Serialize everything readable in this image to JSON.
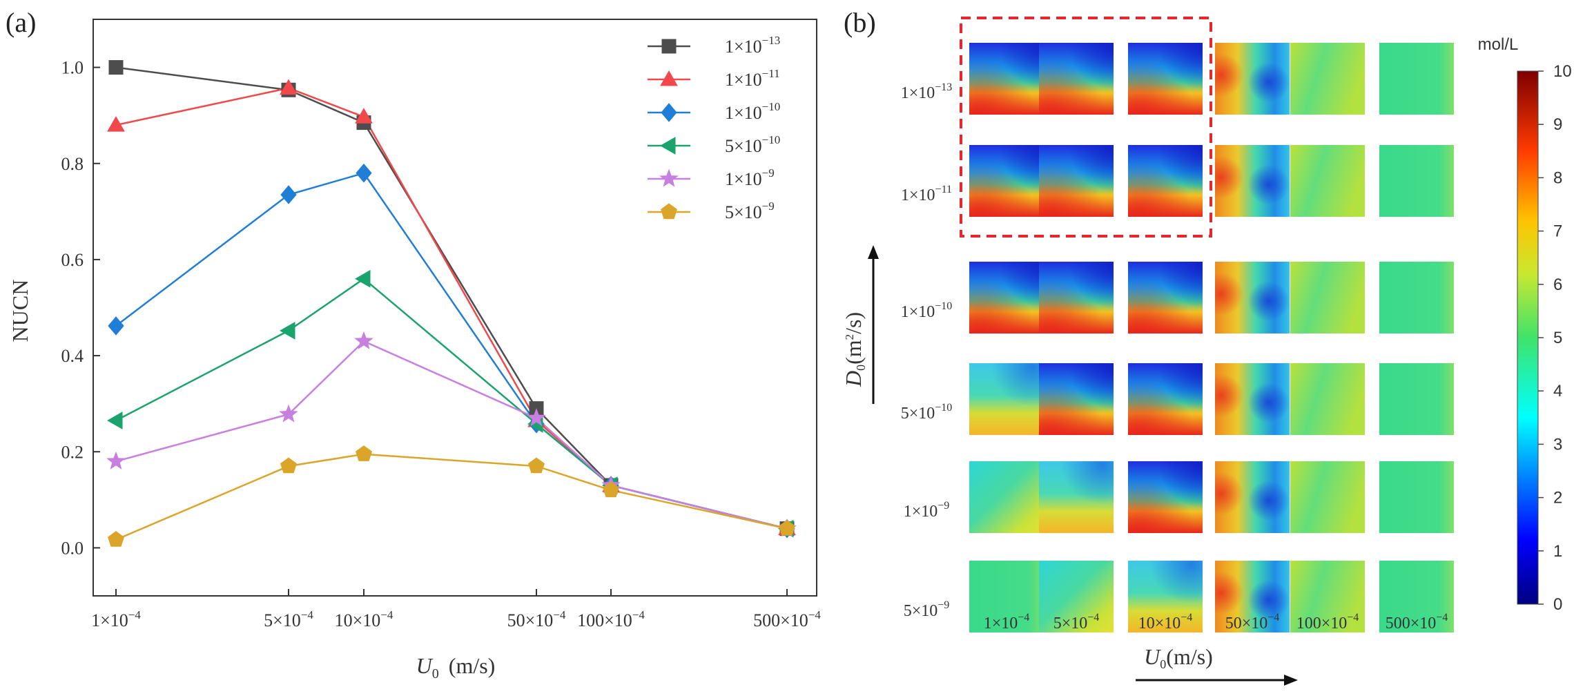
{
  "chart_data": [
    {
      "type": "line",
      "panel_label": "(a)",
      "xlabel": "U",
      "xlabel_sub": "0",
      "xlabel_unit": "(m/s)",
      "ylabel": "NUCN",
      "ylim": [
        -0.1,
        1.1
      ],
      "yticks": [
        0.0,
        0.2,
        0.4,
        0.6,
        0.8,
        1.0
      ],
      "ytick_labels": [
        "0.0",
        "0.2",
        "0.4",
        "0.6",
        "0.8",
        "1.0"
      ],
      "x": [
        1,
        5,
        10,
        50,
        100,
        500
      ],
      "xtick_labels": [
        "1×10⁻⁴",
        "5×10⁻⁴",
        "10×10⁻⁴",
        "50×10⁻⁴",
        "100×10⁻⁴",
        "500×10⁻⁴"
      ],
      "xtick_parts": [
        {
          "base": "1×10",
          "exp": "-4"
        },
        {
          "base": "5×10",
          "exp": "-4"
        },
        {
          "base": "10×10",
          "exp": "-4"
        },
        {
          "base": "50×10",
          "exp": "-4"
        },
        {
          "base": "100×10",
          "exp": "-4"
        },
        {
          "base": "500×10",
          "exp": "-4"
        }
      ],
      "series": [
        {
          "name": "1×10⁻¹³",
          "base": "1×10",
          "exp": "-13",
          "color": "#4d4d4d",
          "marker": "square",
          "values": [
            1.0,
            0.953,
            0.885,
            0.29,
            0.13,
            0.04
          ]
        },
        {
          "name": "1×10⁻¹¹",
          "base": "1×10",
          "exp": "-11",
          "color": "#f0484b",
          "marker": "triangle-up",
          "values": [
            0.88,
            0.957,
            0.897,
            0.265,
            0.13,
            0.04
          ]
        },
        {
          "name": "1×10⁻¹⁰",
          "base": "1×10",
          "exp": "-10",
          "color": "#1f7fd6",
          "marker": "diamond",
          "values": [
            0.462,
            0.735,
            0.78,
            0.258,
            0.13,
            0.04
          ]
        },
        {
          "name": "5×10⁻¹⁰",
          "base": "5×10",
          "exp": "-10",
          "color": "#1aa36d",
          "marker": "triangle-left",
          "values": [
            0.265,
            0.452,
            0.56,
            0.258,
            0.13,
            0.04
          ]
        },
        {
          "name": "1×10⁻⁹",
          "base": "1×10",
          "exp": "-9",
          "color": "#c77fe0",
          "marker": "star",
          "values": [
            0.18,
            0.278,
            0.43,
            0.27,
            0.13,
            0.04
          ]
        },
        {
          "name": "5×10⁻⁹",
          "base": "5×10",
          "exp": "-9",
          "color": "#dba52a",
          "marker": "pentagon",
          "values": [
            0.017,
            0.17,
            0.195,
            0.17,
            0.12,
            0.04
          ]
        }
      ],
      "legend": "top-right",
      "grid": false
    },
    {
      "type": "heatmap",
      "panel_label": "(b)",
      "title": "",
      "row_axis_label": "D",
      "row_axis_sub": "0",
      "row_axis_unit": "(m²/s)",
      "row_axis_unit_parts": {
        "pre": "(m",
        "exp": "2",
        "post": "/s)"
      },
      "col_axis_label": "U",
      "col_axis_sub": "0",
      "col_axis_unit": "(m/s)",
      "rows": [
        {
          "label": "1×10⁻¹³",
          "base": "1×10",
          "exp": "-13"
        },
        {
          "label": "1×10⁻¹¹",
          "base": "1×10",
          "exp": "-11"
        },
        {
          "label": "1×10⁻¹⁰",
          "base": "1×10",
          "exp": "-10"
        },
        {
          "label": "5×10⁻¹⁰",
          "base": "5×10",
          "exp": "-10"
        },
        {
          "label": "1×10⁻⁹",
          "base": "1×10",
          "exp": "-9"
        },
        {
          "label": "5×10⁻⁹",
          "base": "5×10",
          "exp": "-9"
        }
      ],
      "columns": [
        {
          "label": "1×10⁻⁴",
          "base": "1×10",
          "exp": "-4"
        },
        {
          "label": "5×10⁻⁴",
          "base": "5×10",
          "exp": "-4"
        },
        {
          "label": "10×10⁻⁴",
          "base": "10×10",
          "exp": "-4"
        },
        {
          "label": "50×10⁻⁴",
          "base": "50×10",
          "exp": "-4"
        },
        {
          "label": "100×10⁻⁴",
          "base": "100×10",
          "exp": "-4"
        },
        {
          "label": "500×10⁻⁴",
          "base": "500×10",
          "exp": "-4"
        }
      ],
      "cell_patterns": [
        [
          "strat",
          "strat",
          "strat",
          "swirl",
          "flat-yg",
          "flat-g"
        ],
        [
          "strat",
          "strat",
          "strat",
          "swirl",
          "flat-yg",
          "flat-g"
        ],
        [
          "strat",
          "strat",
          "strat",
          "swirl",
          "flat-yg",
          "flat-g"
        ],
        [
          "mild",
          "strat",
          "strat",
          "swirl",
          "flat-yg",
          "flat-g"
        ],
        [
          "diag",
          "mild",
          "strat",
          "swirl",
          "flat-yg",
          "flat-g"
        ],
        [
          "flat-g",
          "diag",
          "mild",
          "swirl",
          "flat-yg",
          "flat-g"
        ]
      ],
      "highlight_box": {
        "rows": [
          0,
          1
        ],
        "columns": [
          0,
          2
        ],
        "color": "#e8262c",
        "style": "dashed"
      },
      "colorbar": {
        "unit": "mol/L",
        "min": 0,
        "max": 10,
        "ticks": [
          0,
          1,
          2,
          3,
          4,
          5,
          6,
          7,
          8,
          9,
          10
        ],
        "colormap": "jet"
      }
    }
  ]
}
